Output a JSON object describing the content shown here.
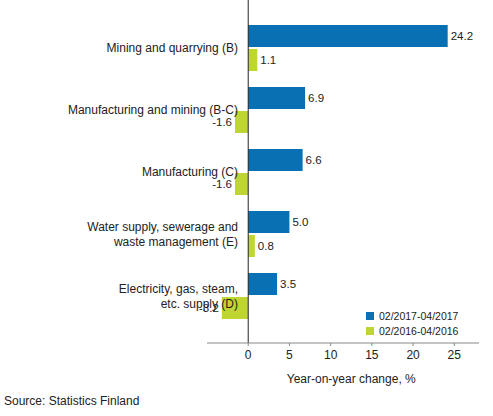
{
  "chart_data": {
    "type": "bar",
    "orientation": "horizontal",
    "categories": [
      "Mining and quarrying (B)",
      "Manufacturing and mining (B-C)",
      "Manufacturing (C)",
      "Water supply, sewerage and\nwaste management (E)",
      "Electricity, gas, steam,\netc. supply (D)"
    ],
    "series": [
      {
        "name": "02/2017-04/2017",
        "color": "#0a70b4",
        "values": [
          24.2,
          6.9,
          6.6,
          5.0,
          3.5
        ],
        "value_labels": [
          "24.2",
          "6.9",
          "6.6",
          "5.0",
          "3.5"
        ]
      },
      {
        "name": "02/2016-04/2016",
        "color": "#bfd530",
        "values": [
          1.1,
          -1.6,
          -1.6,
          0.8,
          -3.2
        ],
        "value_labels": [
          "1.1",
          "-1.6",
          "-1.6",
          "0.8",
          "-3.2"
        ]
      }
    ],
    "x_label": "Year-on-year change, %",
    "source": "Source: Statistics Finland",
    "xlim": [
      -5,
      28
    ],
    "xticks": [
      0,
      5,
      10,
      15,
      20,
      25
    ],
    "grid": false,
    "legend": "lower right",
    "data_labels": true
  }
}
